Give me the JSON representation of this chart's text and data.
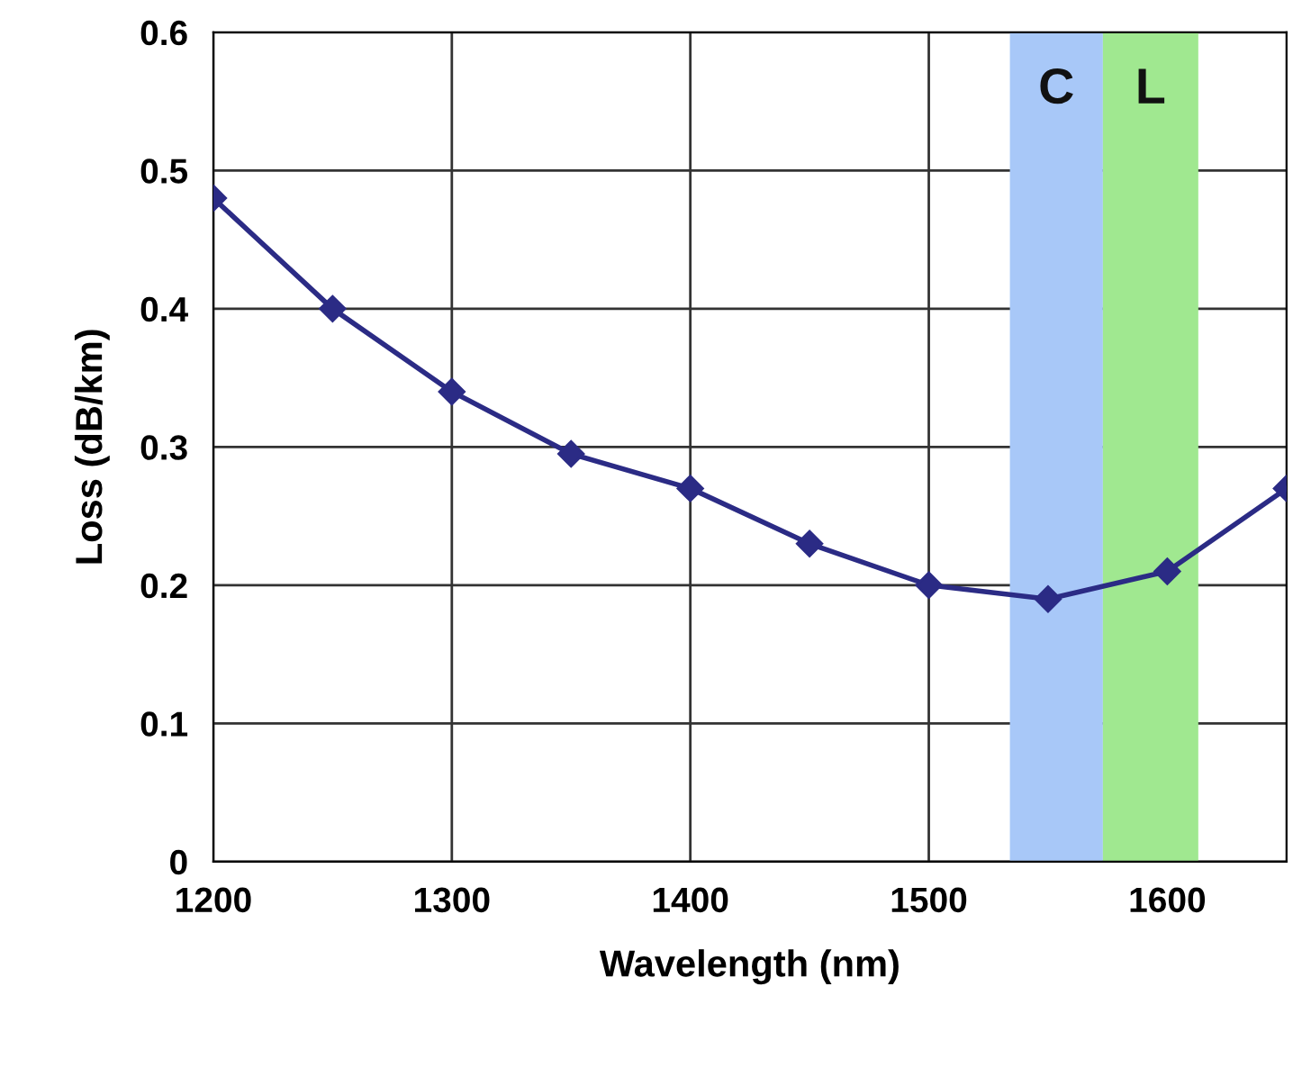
{
  "chart_data": {
    "type": "line",
    "xlabel": "Wavelength (nm)",
    "ylabel": "Loss (dB/km)",
    "x": [
      1200,
      1250,
      1300,
      1350,
      1400,
      1450,
      1500,
      1550,
      1600,
      1650
    ],
    "series": [
      {
        "color": "#2b2b85",
        "values": [
          0.48,
          0.4,
          0.34,
          0.295,
          0.27,
          0.23,
          0.2,
          0.19,
          0.21,
          0.27
        ]
      }
    ],
    "xlim": [
      1200,
      1650
    ],
    "xticks": [
      1200,
      1300,
      1400,
      1500,
      1600
    ],
    "ylim": [
      0,
      0.6
    ],
    "yticks": [
      0,
      0.1,
      0.2,
      0.3,
      0.4,
      0.5,
      0.6
    ],
    "bands": [
      {
        "axis": "x",
        "from": 1534,
        "to": 1573,
        "label": "C",
        "color": "#a8c8f8"
      },
      {
        "axis": "x",
        "from": 1573,
        "to": 1613,
        "label": "L",
        "color": "#a0e890"
      }
    ],
    "grid": true,
    "marker": "diamond",
    "line_style": "solid"
  }
}
